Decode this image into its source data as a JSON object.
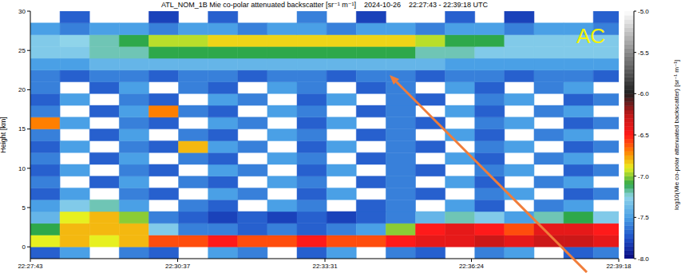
{
  "chart_data": {
    "type": "heatmap",
    "title": "ATL_NOM_1B Mie co-polar attenuated backscatter [sr⁻¹ m⁻¹]    2024-10-26    22:27:43 - 22:39:18 UTC",
    "y_label": "Height [km]",
    "xlim": [
      0,
      695
    ],
    "xticks": [
      {
        "value": 0,
        "label": "22:27:43"
      },
      {
        "value": 174,
        "label": "22:30:37"
      },
      {
        "value": 348,
        "label": "22:33:31"
      },
      {
        "value": 521,
        "label": "22:36:24"
      },
      {
        "value": 695,
        "label": "22:39:18"
      }
    ],
    "ylim": [
      -1.5,
      30
    ],
    "yticks": [
      0,
      5,
      10,
      15,
      20,
      25,
      30
    ],
    "x_bins": [
      0,
      35,
      70,
      105,
      140,
      175,
      210,
      245,
      280,
      315,
      350,
      385,
      420,
      455,
      490,
      525,
      560,
      595,
      630,
      665,
      695
    ],
    "y_bins": [
      -1.5,
      0,
      1.5,
      3,
      4.5,
      6,
      7.5,
      9,
      10.5,
      12,
      13.5,
      15,
      16.5,
      18,
      19.5,
      21,
      22.5,
      24,
      25.5,
      27,
      28.5,
      30
    ],
    "values": [
      [
        -7.7,
        -7.5,
        null,
        -7.6,
        -7.7,
        null,
        -7.5,
        -7.6,
        null,
        -7.7,
        -7.5,
        null,
        -7.6,
        -7.7,
        null,
        -7.6,
        -7.5,
        null,
        -7.7,
        -7.6
      ],
      [
        -6.9,
        -6.8,
        -6.9,
        -6.8,
        -6.6,
        -6.6,
        -6.5,
        -6.6,
        -6.6,
        -6.5,
        -6.6,
        -6.6,
        -6.5,
        -6.4,
        -6.4,
        -6.3,
        -6.4,
        -6.3,
        -6.3,
        -6.4
      ],
      [
        -7.1,
        -6.8,
        -6.8,
        -6.8,
        -7.3,
        -7.6,
        -7.6,
        -7.7,
        -7.6,
        -7.7,
        -7.6,
        -7.5,
        -7.0,
        -6.5,
        -6.4,
        -6.5,
        -6.6,
        -6.4,
        -6.4,
        -6.5
      ],
      [
        -7.4,
        -6.9,
        -6.8,
        -7.0,
        -7.6,
        -7.7,
        -7.8,
        -7.7,
        -7.8,
        -7.7,
        -7.8,
        -7.7,
        -7.6,
        -7.4,
        -7.2,
        -7.3,
        -7.5,
        -7.2,
        -7.1,
        -7.3
      ],
      [
        -7.5,
        -7.3,
        -7.2,
        -7.5,
        null,
        -7.6,
        -7.7,
        null,
        -7.5,
        -7.6,
        null,
        -7.7,
        -7.6,
        null,
        -7.5,
        -7.7,
        null,
        -7.6,
        -7.5,
        null
      ],
      [
        -7.7,
        -7.5,
        null,
        -7.6,
        -7.7,
        null,
        -7.5,
        -7.6,
        null,
        -7.7,
        -7.5,
        null,
        -7.6,
        -7.7,
        null,
        -7.6,
        -7.5,
        null,
        -7.7,
        -7.6
      ],
      [
        -7.6,
        null,
        -7.7,
        -7.5,
        null,
        -7.6,
        -7.7,
        null,
        -7.5,
        -7.6,
        null,
        -7.7,
        -7.6,
        null,
        -7.5,
        -7.7,
        null,
        -7.6,
        -7.5,
        null
      ],
      [
        -7.7,
        -7.5,
        null,
        -7.6,
        -7.7,
        null,
        -7.5,
        -7.6,
        null,
        -7.7,
        -7.5,
        null,
        -7.6,
        -7.7,
        null,
        -7.6,
        -7.5,
        null,
        -7.7,
        -7.6
      ],
      [
        -7.6,
        null,
        -7.7,
        -7.5,
        null,
        -7.6,
        -7.7,
        null,
        -7.5,
        -7.6,
        null,
        -7.7,
        -7.6,
        null,
        -7.5,
        -7.7,
        null,
        -7.6,
        -7.5,
        null
      ],
      [
        -7.7,
        -7.5,
        null,
        -7.6,
        -7.7,
        -6.8,
        -7.5,
        -7.6,
        null,
        -7.7,
        -7.5,
        null,
        -7.6,
        -7.7,
        null,
        -7.6,
        -7.5,
        null,
        -7.7,
        -7.6
      ],
      [
        -7.6,
        null,
        -7.7,
        -7.5,
        null,
        -7.6,
        -7.7,
        null,
        -7.5,
        -7.6,
        null,
        -7.7,
        -7.6,
        null,
        -7.5,
        -7.7,
        null,
        -7.6,
        -7.5,
        null
      ],
      [
        -6.7,
        -7.5,
        null,
        -7.6,
        -7.7,
        null,
        -7.5,
        -7.6,
        null,
        -7.7,
        -7.5,
        null,
        -7.6,
        -7.7,
        null,
        -7.6,
        -7.5,
        null,
        -7.7,
        -7.6
      ],
      [
        -7.6,
        null,
        -7.7,
        -7.5,
        -6.7,
        -7.6,
        -7.7,
        null,
        -7.5,
        -7.6,
        null,
        -7.7,
        -7.6,
        null,
        -7.5,
        -7.7,
        null,
        -7.6,
        -7.5,
        null
      ],
      [
        -7.7,
        -7.5,
        null,
        -7.6,
        -7.7,
        null,
        -7.5,
        -7.6,
        null,
        -7.7,
        -7.5,
        null,
        -7.6,
        -7.7,
        null,
        -7.6,
        -7.5,
        null,
        -7.7,
        -7.6
      ],
      [
        -7.6,
        null,
        -7.7,
        -7.5,
        null,
        -7.6,
        -7.7,
        null,
        -7.5,
        -7.6,
        null,
        -7.7,
        -7.6,
        null,
        -7.5,
        -7.7,
        null,
        -7.6,
        -7.5,
        null
      ],
      [
        -7.6,
        -7.7,
        -7.6,
        -7.6,
        -7.7,
        -7.6,
        -7.6,
        -7.7,
        -7.6,
        -7.6,
        -7.7,
        -7.6,
        -7.6,
        -7.7,
        -7.6,
        -7.6,
        -7.7,
        -7.6,
        -7.6,
        -7.7
      ],
      [
        -7.5,
        -7.5,
        -7.4,
        -7.4,
        -7.4,
        -7.4,
        -7.4,
        -7.4,
        -7.4,
        -7.4,
        -7.4,
        -7.4,
        -7.4,
        -7.4,
        -7.5,
        -7.5,
        -7.5,
        -7.5,
        -7.5,
        -7.5
      ],
      [
        -7.3,
        -7.3,
        -7.2,
        -7.2,
        -7.1,
        -7.1,
        -7.1,
        -7.1,
        -7.1,
        -7.1,
        -7.1,
        -7.1,
        -7.1,
        -7.2,
        -7.2,
        -7.3,
        -7.3,
        -7.3,
        -7.3,
        -7.3
      ],
      [
        -7.3,
        -7.25,
        -7.2,
        -7.1,
        -6.95,
        -6.95,
        -6.85,
        -6.85,
        -6.85,
        -6.85,
        -6.85,
        -6.85,
        -6.85,
        -6.95,
        -7.1,
        -7.1,
        -7.3,
        -7.3,
        -7.3,
        -7.3
      ],
      [
        -7.5,
        -7.6,
        -7.5,
        -7.5,
        -7.6,
        -7.5,
        -7.5,
        -7.6,
        -7.5,
        -7.5,
        -7.6,
        -7.5,
        -7.5,
        -7.6,
        -7.5,
        -7.5,
        -7.6,
        -7.5,
        -7.5,
        -7.6
      ],
      [
        null,
        -7.7,
        null,
        null,
        -7.8,
        null,
        -7.7,
        null,
        null,
        -7.6,
        null,
        -7.8,
        null,
        null,
        -7.7,
        null,
        -7.8,
        null,
        null,
        -7.7
      ]
    ],
    "colorbar": {
      "range": [
        -8,
        -5
      ],
      "ticks": [
        {
          "value": -8,
          "label": "-8.0"
        },
        {
          "value": -7.5,
          "label": "-7.5"
        },
        {
          "value": -7,
          "label": "-7.0"
        },
        {
          "value": -6.5,
          "label": "-6.5"
        },
        {
          "value": -6,
          "label": "-6.0"
        },
        {
          "value": -5.5,
          "label": "-5.5"
        },
        {
          "value": -5,
          "label": "-5.0"
        }
      ],
      "label": "log10(Mie co-polar attenuated backscatter) [sr⁻¹ m⁻¹]"
    },
    "annotations": [
      {
        "text": "AC"
      }
    ]
  }
}
